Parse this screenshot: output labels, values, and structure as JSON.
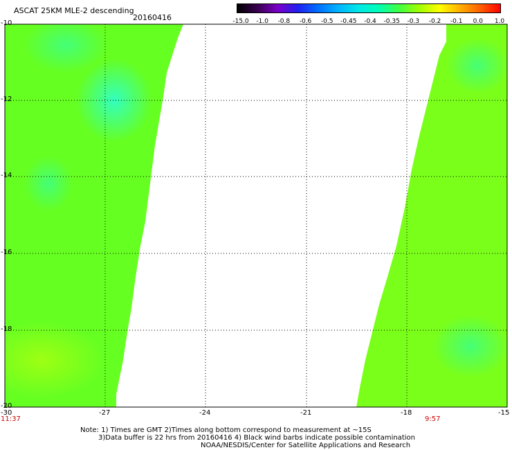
{
  "header": {
    "title": "ASCAT 25KM MLE-2 descending",
    "date": "20160416"
  },
  "colorbar": {
    "labels": [
      "-15.0",
      "-1.0",
      "-0.8",
      "-0.6",
      "-0.5",
      "-0.45",
      "-0.4",
      "-0.35",
      "-0.3",
      "-0.2",
      "-0.1",
      "0.0",
      "1.0"
    ],
    "colors": [
      "#3a0050",
      "#7a00c8",
      "#2020f0",
      "#0070ff",
      "#00b4ff",
      "#00e8e8",
      "#00ffb4",
      "#40ff40",
      "#a0ff00",
      "#ffff00",
      "#ffb000",
      "#ff6000",
      "#ff0000"
    ]
  },
  "axes": {
    "y_labels": [
      "-10",
      "-12",
      "-14",
      "-16",
      "-18",
      "-20"
    ],
    "x_labels": [
      "-30",
      "-27",
      "-24",
      "-21",
      "-18",
      "-15"
    ]
  },
  "swath_times": {
    "left": "11:37",
    "right": "9:57"
  },
  "notes": {
    "line1": "Note: 1) Times are GMT 2)Times along bottom correspond to measurement at ~15S",
    "line2": "3)Data buffer is 22 hrs from 20160416 4) Black wind barbs indicate possible contamination",
    "line3": "NOAA/NESDIS/Center for Satellite Applications and Research"
  },
  "map": {
    "lon_range": [
      -30,
      -15
    ],
    "lat_range": [
      -20,
      -10
    ],
    "data_color": "#66ff22",
    "highlight_color": "#22ffa0",
    "grid": true
  }
}
